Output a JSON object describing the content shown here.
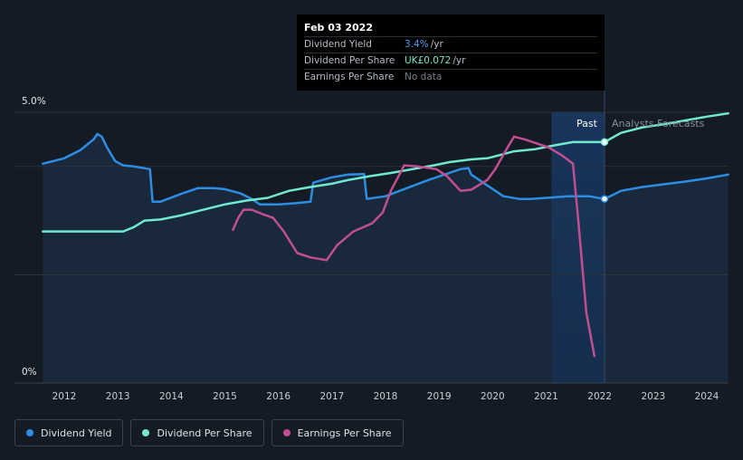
{
  "tooltip": {
    "date": "Feb 03 2022",
    "rows": [
      {
        "label": "Dividend Yield",
        "value": "3.4%",
        "unit": "/yr",
        "color": "#3d9bf0"
      },
      {
        "label": "Dividend Per Share",
        "value": "UK£0.072",
        "unit": "/yr",
        "color": "#6fe9d0"
      },
      {
        "label": "Earnings Per Share",
        "value": "No data",
        "unit": "",
        "color": "#7b8088"
      }
    ]
  },
  "regions": {
    "past": "Past",
    "forecast": "Analysts Forecasts"
  },
  "legend": [
    {
      "label": "Dividend Yield",
      "color": "#2d8de3"
    },
    {
      "label": "Dividend Per Share",
      "color": "#6fe9d0"
    },
    {
      "label": "Earnings Per Share",
      "color": "#c24e90"
    }
  ],
  "chart_data": {
    "type": "line",
    "y_ticks": [
      "5.0%",
      "0%"
    ],
    "ylim": [
      0,
      5
    ],
    "xlim": [
      2011.6,
      2024.4
    ],
    "x_ticks": [
      "2012",
      "2013",
      "2014",
      "2015",
      "2016",
      "2017",
      "2018",
      "2019",
      "2020",
      "2021",
      "2022",
      "2023",
      "2024"
    ],
    "highlight_date": 2022.09,
    "past_region_start": 2021.1,
    "series": [
      {
        "name": "Dividend Yield",
        "color": "#2d8de3",
        "points": [
          [
            2011.6,
            4.05
          ],
          [
            2012.0,
            4.15
          ],
          [
            2012.3,
            4.3
          ],
          [
            2012.55,
            4.5
          ],
          [
            2012.62,
            4.6
          ],
          [
            2012.7,
            4.55
          ],
          [
            2012.8,
            4.35
          ],
          [
            2012.95,
            4.1
          ],
          [
            2013.1,
            4.02
          ],
          [
            2013.3,
            4.0
          ],
          [
            2013.6,
            3.95
          ],
          [
            2013.65,
            3.35
          ],
          [
            2013.8,
            3.35
          ],
          [
            2014.2,
            3.5
          ],
          [
            2014.5,
            3.6
          ],
          [
            2014.8,
            3.6
          ],
          [
            2015.0,
            3.58
          ],
          [
            2015.3,
            3.5
          ],
          [
            2015.5,
            3.4
          ],
          [
            2015.65,
            3.3
          ],
          [
            2016.0,
            3.3
          ],
          [
            2016.3,
            3.32
          ],
          [
            2016.6,
            3.35
          ],
          [
            2016.65,
            3.7
          ],
          [
            2017.0,
            3.8
          ],
          [
            2017.3,
            3.85
          ],
          [
            2017.6,
            3.86
          ],
          [
            2017.65,
            3.4
          ],
          [
            2018.0,
            3.45
          ],
          [
            2018.4,
            3.6
          ],
          [
            2018.8,
            3.75
          ],
          [
            2019.1,
            3.85
          ],
          [
            2019.4,
            3.95
          ],
          [
            2019.55,
            3.97
          ],
          [
            2019.6,
            3.85
          ],
          [
            2019.9,
            3.65
          ],
          [
            2020.2,
            3.45
          ],
          [
            2020.5,
            3.4
          ],
          [
            2020.7,
            3.4
          ],
          [
            2021.0,
            3.42
          ],
          [
            2021.4,
            3.45
          ],
          [
            2021.8,
            3.45
          ],
          [
            2022.09,
            3.4
          ],
          [
            2022.4,
            3.55
          ],
          [
            2022.8,
            3.62
          ],
          [
            2023.2,
            3.67
          ],
          [
            2023.6,
            3.72
          ],
          [
            2024.0,
            3.78
          ],
          [
            2024.4,
            3.85
          ]
        ],
        "forecast_from": 2022.09
      },
      {
        "name": "Dividend Per Share",
        "color": "#6fe9d0",
        "points": [
          [
            2011.6,
            2.8
          ],
          [
            2012.0,
            2.8
          ],
          [
            2012.5,
            2.8
          ],
          [
            2013.1,
            2.8
          ],
          [
            2013.3,
            2.88
          ],
          [
            2013.5,
            3.0
          ],
          [
            2013.8,
            3.02
          ],
          [
            2014.2,
            3.1
          ],
          [
            2014.6,
            3.2
          ],
          [
            2015.0,
            3.3
          ],
          [
            2015.4,
            3.37
          ],
          [
            2015.8,
            3.42
          ],
          [
            2016.2,
            3.55
          ],
          [
            2016.6,
            3.62
          ],
          [
            2017.0,
            3.68
          ],
          [
            2017.3,
            3.75
          ],
          [
            2017.7,
            3.82
          ],
          [
            2018.1,
            3.88
          ],
          [
            2018.5,
            3.95
          ],
          [
            2018.9,
            4.02
          ],
          [
            2019.2,
            4.08
          ],
          [
            2019.6,
            4.13
          ],
          [
            2019.9,
            4.15
          ],
          [
            2020.1,
            4.2
          ],
          [
            2020.4,
            4.28
          ],
          [
            2020.8,
            4.32
          ],
          [
            2021.1,
            4.38
          ],
          [
            2021.5,
            4.45
          ],
          [
            2021.8,
            4.45
          ],
          [
            2022.09,
            4.45
          ],
          [
            2022.4,
            4.62
          ],
          [
            2022.8,
            4.72
          ],
          [
            2023.2,
            4.78
          ],
          [
            2023.6,
            4.85
          ],
          [
            2024.0,
            4.92
          ],
          [
            2024.4,
            4.98
          ]
        ],
        "forecast_from": 2022.09
      },
      {
        "name": "Earnings Per Share",
        "color": "#c24e90",
        "points": [
          [
            2015.15,
            2.83
          ],
          [
            2015.25,
            3.05
          ],
          [
            2015.35,
            3.2
          ],
          [
            2015.5,
            3.2
          ],
          [
            2015.7,
            3.12
          ],
          [
            2015.9,
            3.05
          ],
          [
            2016.1,
            2.8
          ],
          [
            2016.35,
            2.4
          ],
          [
            2016.6,
            2.32
          ],
          [
            2016.9,
            2.27
          ],
          [
            2017.1,
            2.55
          ],
          [
            2017.4,
            2.8
          ],
          [
            2017.75,
            2.95
          ],
          [
            2017.95,
            3.15
          ],
          [
            2018.1,
            3.55
          ],
          [
            2018.35,
            4.02
          ],
          [
            2018.6,
            4.0
          ],
          [
            2018.95,
            3.95
          ],
          [
            2019.15,
            3.82
          ],
          [
            2019.4,
            3.55
          ],
          [
            2019.6,
            3.57
          ],
          [
            2019.9,
            3.75
          ],
          [
            2020.05,
            3.95
          ],
          [
            2020.25,
            4.3
          ],
          [
            2020.4,
            4.55
          ],
          [
            2020.6,
            4.5
          ],
          [
            2020.9,
            4.4
          ],
          [
            2021.05,
            4.35
          ],
          [
            2021.3,
            4.2
          ],
          [
            2021.5,
            4.05
          ],
          [
            2021.6,
            3.0
          ],
          [
            2021.75,
            1.3
          ],
          [
            2021.9,
            0.5
          ]
        ],
        "forecast_from": null
      }
    ]
  }
}
